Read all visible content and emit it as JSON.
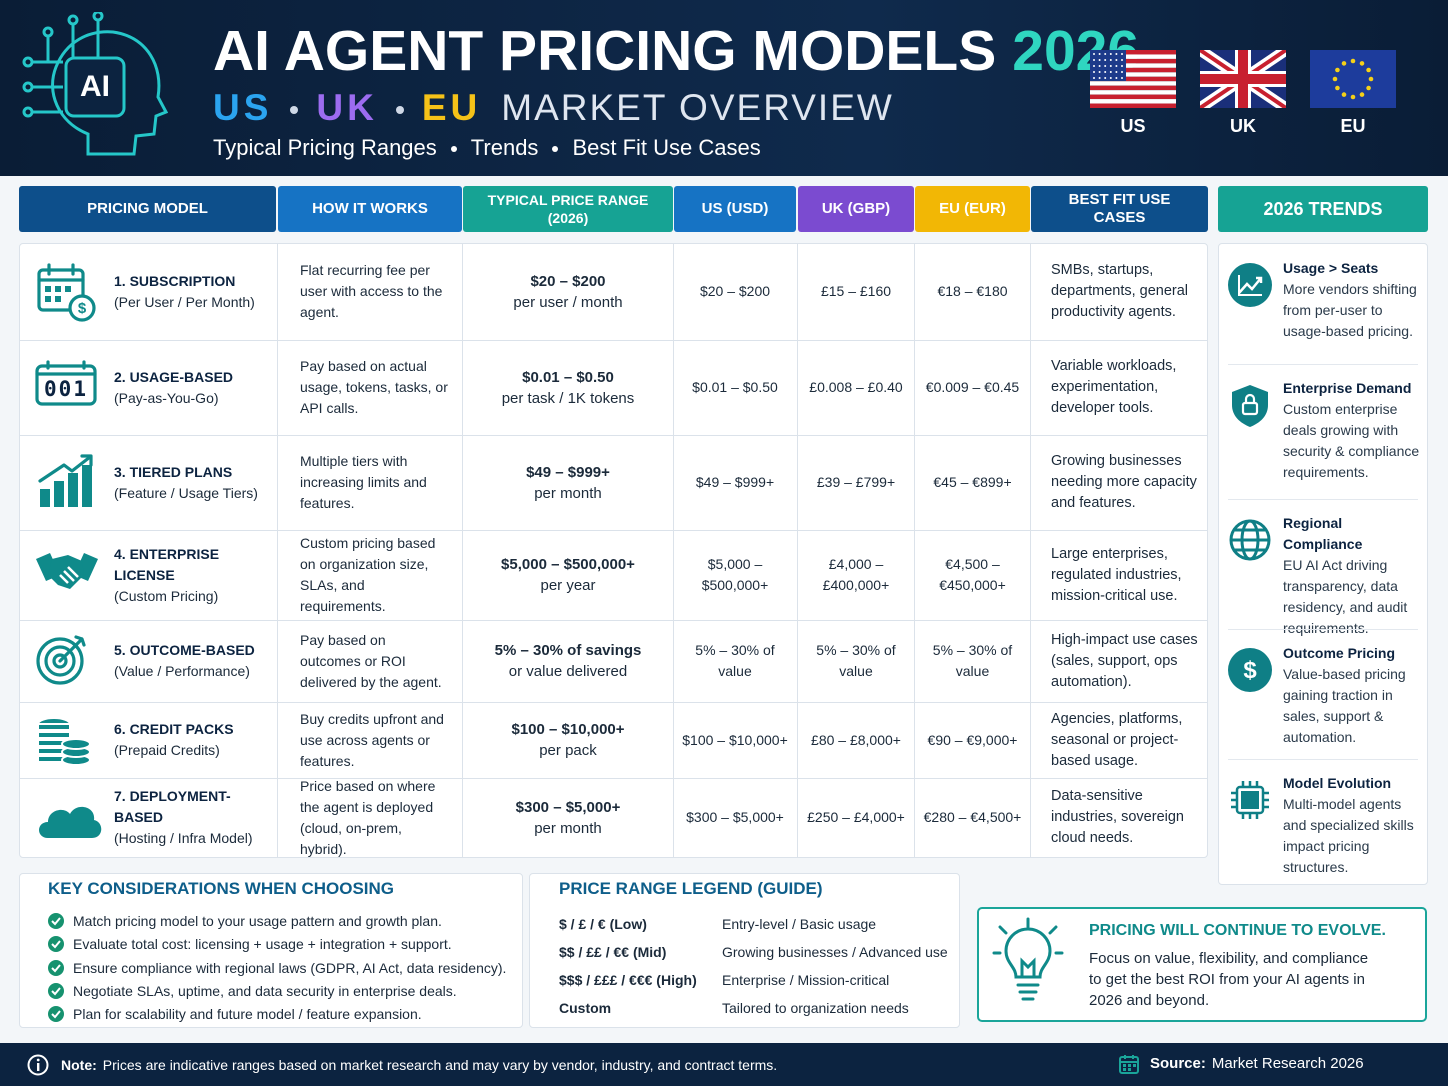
{
  "header": {
    "logo": "AI",
    "title": "AI AGENT PRICING MODELS",
    "title_year": "2026",
    "subtitle": {
      "us": "US",
      "uk": "UK",
      "eu": "EU",
      "rest": "MARKET OVERVIEW"
    },
    "tagline": [
      "Typical Pricing Ranges",
      "Trends",
      "Best Fit Use Cases"
    ],
    "flags": [
      "US",
      "UK",
      "EU"
    ]
  },
  "table": {
    "columns": [
      "PRICING MODEL",
      "HOW IT WORKS",
      "TYPICAL PRICE RANGE (2026)",
      "US (USD)",
      "UK (GBP)",
      "EU (EUR)",
      "BEST FIT USE CASES"
    ],
    "rows": [
      {
        "model": "1. SUBSCRIPTION",
        "model_note": "(Per User / Per Month)",
        "how": "Flat recurring fee per user with access to the agent.",
        "price": "$20 – $200",
        "price_unit": "per user / month",
        "us": "$20 – $200",
        "uk": "£15 – £160",
        "eu": "€18 – €180",
        "use_cases": "SMBs, startups, departments, general productivity agents."
      },
      {
        "icon_label": "001",
        "model": "2. USAGE-BASED",
        "model_note": "(Pay-as-You-Go)",
        "how": "Pay based on actual usage, tokens, tasks, or API calls.",
        "price": "$0.01 – $0.50",
        "price_unit": "per task / 1K tokens",
        "us": "$0.01 – $0.50",
        "uk": "£0.008 – £0.40",
        "eu": "€0.009 – €0.45",
        "use_cases": "Variable workloads, experimentation, developer tools."
      },
      {
        "model": "3. TIERED PLANS",
        "model_note": "(Feature / Usage Tiers)",
        "how": "Multiple tiers with increasing limits and features.",
        "price": "$49 – $999+",
        "price_unit": "per month",
        "us": "$49 – $999+",
        "uk": "£39 – £799+",
        "eu": "€45 – €899+",
        "use_cases": "Growing businesses needing more capacity and features."
      },
      {
        "model": "4. ENTERPRISE LICENSE",
        "model_note": "(Custom Pricing)",
        "how": "Custom pricing based on organization size, SLAs, and requirements.",
        "price": "$5,000 – $500,000+",
        "price_unit": "per year",
        "us": "$5,000 – $500,000+",
        "uk": "£4,000 – £400,000+",
        "eu": "€4,500 – €450,000+",
        "use_cases": "Large enterprises, regulated industries, mission-critical use."
      },
      {
        "model": "5. OUTCOME-BASED",
        "model_note": "(Value / Performance)",
        "how": "Pay based on outcomes or ROI delivered by the agent.",
        "price": "5% – 30% of savings",
        "price_unit": "or value delivered",
        "us": "5% – 30% of value",
        "uk": "5% – 30% of value",
        "eu": "5% – 30% of value",
        "use_cases": "High-impact use cases (sales, support, ops automation)."
      },
      {
        "model": "6. CREDIT PACKS",
        "model_note": "(Prepaid Credits)",
        "how": "Buy credits upfront and use across agents or features.",
        "price": "$100 – $10,000+",
        "price_unit": "per pack",
        "us": "$100 – $10,000+",
        "uk": "£80 – £8,000+",
        "eu": "€90 – €9,000+",
        "use_cases": "Agencies, platforms, seasonal or project-based usage."
      },
      {
        "model": "7. DEPLOYMENT-BASED",
        "model_note": "(Hosting / Infra Model)",
        "how": "Price based on where the agent is deployed (cloud, on-prem, hybrid).",
        "price": "$300 – $5,000+",
        "price_unit": "per month",
        "us": "$300 – $5,000+",
        "uk": "£250 – £4,000+",
        "eu": "€280 – €4,500+",
        "use_cases": "Data-sensitive industries, sovereign cloud needs."
      }
    ]
  },
  "trends": {
    "title": "2026 TRENDS",
    "items": [
      {
        "title": "Usage > Seats",
        "text": "More vendors shifting from per-user to usage-based pricing."
      },
      {
        "title": "Enterprise Demand",
        "text": "Custom enterprise deals growing with security & compliance requirements."
      },
      {
        "title": "Regional Compliance",
        "text": "EU AI Act driving transparency, data residency, and audit requirements."
      },
      {
        "title": "Outcome Pricing",
        "text": "Value-based pricing gaining traction in sales, support & automation."
      },
      {
        "title": "Model Evolution",
        "text": "Multi-model agents and specialized skills impact pricing structures."
      }
    ]
  },
  "considerations": {
    "title": "KEY CONSIDERATIONS WHEN CHOOSING",
    "items": [
      "Match pricing model to your usage pattern and growth plan.",
      "Evaluate total cost: licensing + usage + integration + support.",
      "Ensure compliance with regional laws (GDPR, AI Act, data residency).",
      "Negotiate SLAs, uptime, and data security in enterprise deals.",
      "Plan for scalability and future model / feature expansion."
    ]
  },
  "legend": {
    "title": "PRICE RANGE LEGEND (GUIDE)",
    "rows": [
      {
        "tier": "$ / £ / € (Low)",
        "meaning": "Entry-level / Basic usage"
      },
      {
        "tier": "$$ / ££ / €€ (Mid)",
        "meaning": "Growing businesses / Advanced use"
      },
      {
        "tier": "$$$ / £££ / €€€ (High)",
        "meaning": "Enterprise / Mission-critical"
      },
      {
        "tier": "Custom",
        "meaning": "Tailored to organization needs"
      }
    ]
  },
  "callout": {
    "title": "PRICING WILL CONTINUE TO EVOLVE.",
    "text": "Focus on value, flexibility, and compliance to get the best ROI from your AI agents in 2026 and beyond."
  },
  "footer": {
    "note_label": "Note:",
    "note": "Prices are indicative ranges based on market research and may vary by vendor, industry, and contract terms.",
    "source_label": "Source:",
    "source": "Market Research 2026"
  }
}
